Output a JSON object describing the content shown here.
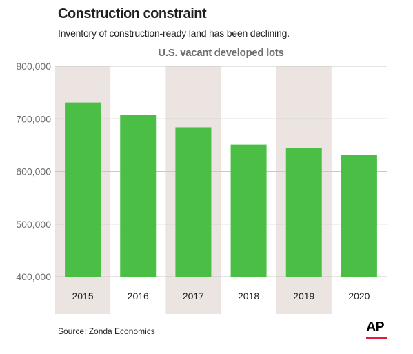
{
  "header": {
    "title": "Construction constraint",
    "subtitle": "Inventory of construction-ready land has been declining."
  },
  "footer": {
    "source": "Source: Zonda Economics",
    "logo_text": "AP"
  },
  "colors": {
    "bar": "#4bbf45",
    "band": "#ebe4e1",
    "grid": "#c8c8c8",
    "text": "#231f20",
    "heading": "#6d6e71",
    "logo_accent": "#e31937"
  },
  "chart_data": {
    "type": "bar",
    "title": "U.S. vacant developed lots",
    "categories": [
      "2015",
      "2016",
      "2017",
      "2018",
      "2019",
      "2020"
    ],
    "values": [
      731000,
      707000,
      684000,
      651000,
      644000,
      631000
    ],
    "ylim": [
      400000,
      800000
    ],
    "yticks": [
      400000,
      500000,
      600000,
      700000,
      800000
    ],
    "ytick_labels": [
      "400,000",
      "500,000",
      "600,000",
      "700,000",
      "800,000"
    ],
    "xlabel": "",
    "ylabel": "",
    "grid": true,
    "alternating_bands": true
  }
}
